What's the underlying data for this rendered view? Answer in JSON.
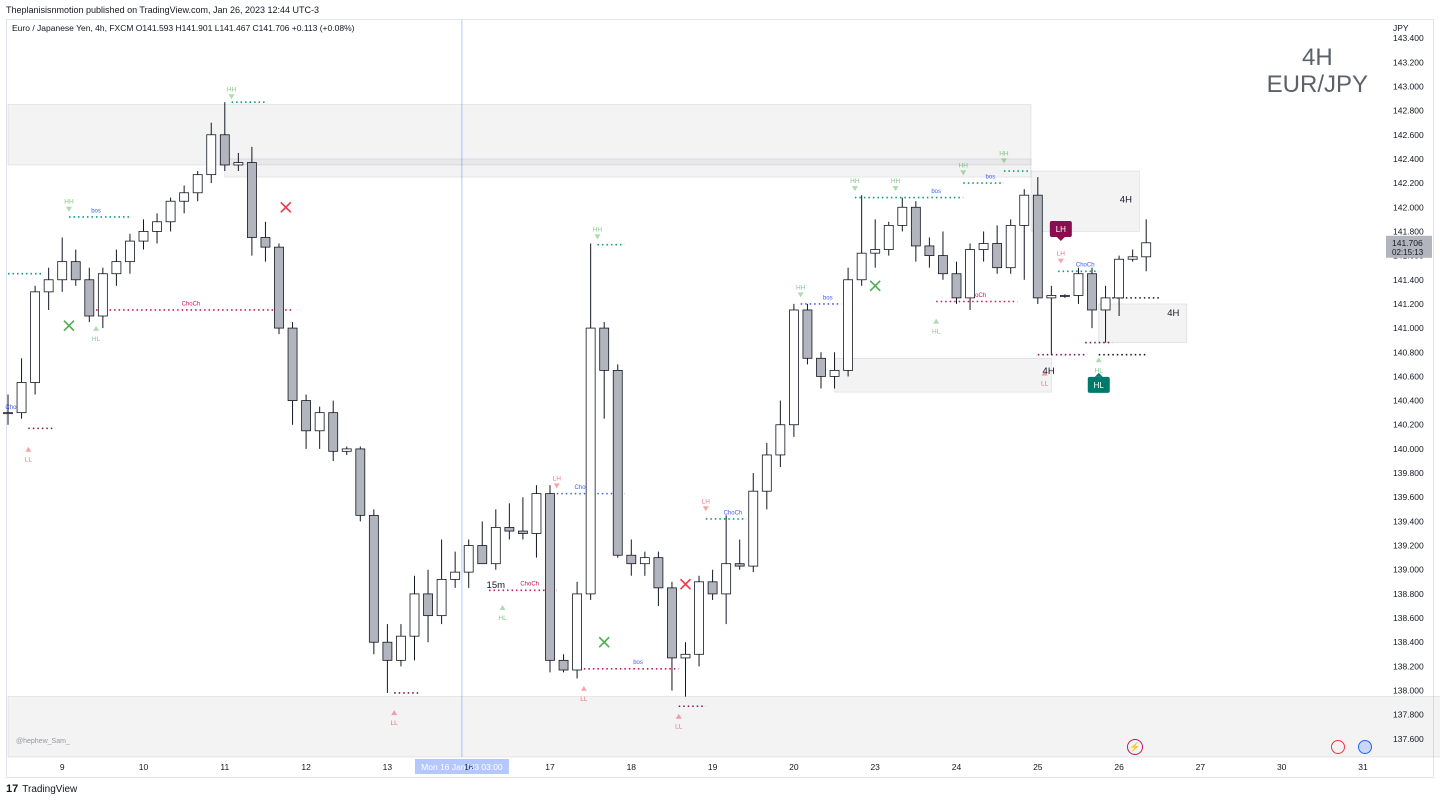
{
  "header": {
    "published": "Theplanisisnmotion published on TradingView.com, Jan 26, 2023 12:44 UTC-3",
    "legend": "Euro / Japanese Yen, 4h, FXCM  O141.593  H141.901  L141.467  C141.706  +0.113 (+0.08%)"
  },
  "watermark": {
    "line1": "4H",
    "line2": "EUR/JPY"
  },
  "footer": {
    "brand": "TradingView",
    "credit": "@hephew_Sam_"
  },
  "chart_data": {
    "type": "candlestick",
    "currency": "JPY",
    "ylim": [
      137.45,
      143.55
    ],
    "y_ticks": [
      "143.400",
      "143.200",
      "143.000",
      "142.800",
      "142.600",
      "142.400",
      "142.200",
      "142.000",
      "141.800",
      "141.600",
      "141.400",
      "141.200",
      "141.000",
      "140.800",
      "140.600",
      "140.400",
      "140.200",
      "140.000",
      "139.800",
      "139.600",
      "139.400",
      "139.200",
      "139.000",
      "138.800",
      "138.600",
      "138.400",
      "138.200",
      "138.000",
      "137.800",
      "137.600"
    ],
    "x_ticks": [
      {
        "label": "9",
        "bar": 4
      },
      {
        "label": "10",
        "bar": 10
      },
      {
        "label": "11",
        "bar": 16
      },
      {
        "label": "12",
        "bar": 22
      },
      {
        "label": "13",
        "bar": 28
      },
      {
        "label": "16",
        "bar": 34
      },
      {
        "label": "17",
        "bar": 40
      },
      {
        "label": "18",
        "bar": 46
      },
      {
        "label": "19",
        "bar": 52
      },
      {
        "label": "20",
        "bar": 58
      },
      {
        "label": "23",
        "bar": 64
      },
      {
        "label": "24",
        "bar": 70
      },
      {
        "label": "25",
        "bar": 76
      },
      {
        "label": "26",
        "bar": 82
      },
      {
        "label": "27",
        "bar": 88
      },
      {
        "label": "30",
        "bar": 94
      },
      {
        "label": "31",
        "bar": 100
      }
    ],
    "crosshair": {
      "bar": 33.5,
      "label": "Mon 16 Jan '23   03:00"
    },
    "last_price": {
      "value": "141.706",
      "countdown": "02:15:13"
    },
    "candles": [
      [
        140.3,
        140.45,
        140.2,
        140.3
      ],
      [
        140.3,
        140.75,
        140.25,
        140.55
      ],
      [
        140.55,
        141.35,
        140.45,
        141.3
      ],
      [
        141.3,
        141.5,
        141.15,
        141.4
      ],
      [
        141.4,
        141.75,
        141.3,
        141.55
      ],
      [
        141.55,
        141.65,
        141.35,
        141.4
      ],
      [
        141.4,
        141.5,
        141.05,
        141.1
      ],
      [
        141.1,
        141.5,
        141.0,
        141.45
      ],
      [
        141.45,
        141.65,
        141.35,
        141.55
      ],
      [
        141.55,
        141.78,
        141.45,
        141.72
      ],
      [
        141.72,
        141.9,
        141.65,
        141.8
      ],
      [
        141.8,
        141.95,
        141.7,
        141.88
      ],
      [
        141.88,
        142.08,
        141.8,
        142.05
      ],
      [
        142.05,
        142.18,
        141.95,
        142.12
      ],
      [
        142.12,
        142.3,
        142.05,
        142.27
      ],
      [
        142.27,
        142.7,
        142.2,
        142.6
      ],
      [
        142.6,
        142.87,
        142.3,
        142.35
      ],
      [
        142.35,
        142.45,
        142.3,
        142.37
      ],
      [
        142.37,
        142.5,
        141.6,
        141.75
      ],
      [
        141.75,
        141.88,
        141.55,
        141.67
      ],
      [
        141.67,
        141.7,
        140.95,
        141.0
      ],
      [
        141.0,
        141.05,
        140.2,
        140.4
      ],
      [
        140.4,
        140.45,
        140.0,
        140.15
      ],
      [
        140.15,
        140.35,
        140.0,
        140.3
      ],
      [
        140.3,
        140.4,
        139.9,
        139.98
      ],
      [
        139.98,
        140.02,
        139.95,
        140.0
      ],
      [
        140.0,
        140.02,
        139.4,
        139.45
      ],
      [
        139.45,
        139.5,
        138.3,
        138.4
      ],
      [
        138.4,
        138.55,
        137.98,
        138.25
      ],
      [
        138.25,
        138.55,
        138.2,
        138.45
      ],
      [
        138.45,
        138.95,
        138.25,
        138.8
      ],
      [
        138.8,
        139.0,
        138.4,
        138.62
      ],
      [
        138.62,
        139.25,
        138.55,
        138.92
      ],
      [
        138.92,
        139.15,
        138.85,
        138.98
      ],
      [
        138.98,
        139.25,
        138.85,
        139.2
      ],
      [
        139.2,
        139.4,
        139.05,
        139.05
      ],
      [
        139.05,
        139.5,
        139.0,
        139.35
      ],
      [
        139.35,
        139.55,
        139.25,
        139.32
      ],
      [
        139.32,
        139.6,
        139.25,
        139.3
      ],
      [
        139.3,
        139.7,
        139.1,
        139.63
      ],
      [
        139.63,
        139.7,
        138.15,
        138.25
      ],
      [
        138.25,
        138.3,
        138.15,
        138.17
      ],
      [
        138.17,
        138.9,
        138.1,
        138.8
      ],
      [
        138.8,
        141.7,
        138.75,
        141.0
      ],
      [
        141.0,
        141.05,
        140.25,
        140.65
      ],
      [
        140.65,
        140.7,
        139.1,
        139.12
      ],
      [
        139.12,
        139.25,
        138.95,
        139.05
      ],
      [
        139.05,
        139.15,
        138.95,
        139.1
      ],
      [
        139.1,
        139.15,
        138.7,
        138.85
      ],
      [
        138.85,
        138.9,
        138.0,
        138.27
      ],
      [
        138.27,
        138.4,
        137.95,
        138.3
      ],
      [
        138.3,
        138.95,
        138.2,
        138.9
      ],
      [
        138.9,
        139.0,
        138.75,
        138.8
      ],
      [
        138.8,
        139.45,
        138.55,
        139.05
      ],
      [
        139.05,
        139.25,
        139.0,
        139.03
      ],
      [
        139.03,
        139.8,
        138.98,
        139.65
      ],
      [
        139.65,
        140.05,
        139.5,
        139.95
      ],
      [
        139.95,
        140.4,
        139.85,
        140.2
      ],
      [
        140.2,
        141.2,
        140.1,
        141.15
      ],
      [
        141.15,
        141.2,
        140.7,
        140.75
      ],
      [
        140.75,
        140.8,
        140.5,
        140.6
      ],
      [
        140.6,
        140.8,
        140.5,
        140.65
      ],
      [
        140.65,
        141.5,
        140.6,
        141.4
      ],
      [
        141.4,
        142.1,
        141.35,
        141.62
      ],
      [
        141.62,
        141.9,
        141.5,
        141.65
      ],
      [
        141.65,
        141.88,
        141.6,
        141.85
      ],
      [
        141.85,
        142.08,
        141.8,
        142.0
      ],
      [
        142.0,
        142.05,
        141.55,
        141.68
      ],
      [
        141.68,
        141.75,
        141.5,
        141.6
      ],
      [
        141.6,
        141.8,
        141.4,
        141.45
      ],
      [
        141.45,
        141.55,
        141.2,
        141.25
      ],
      [
        141.25,
        141.7,
        141.15,
        141.65
      ],
      [
        141.65,
        141.8,
        141.55,
        141.7
      ],
      [
        141.7,
        141.85,
        141.45,
        141.5
      ],
      [
        141.5,
        141.9,
        141.45,
        141.85
      ],
      [
        141.85,
        142.15,
        141.4,
        142.1
      ],
      [
        142.1,
        142.25,
        141.2,
        141.25
      ],
      [
        141.25,
        141.35,
        140.78,
        141.27
      ],
      [
        141.27,
        141.28,
        141.25,
        141.27
      ],
      [
        141.27,
        141.5,
        141.2,
        141.45
      ],
      [
        141.45,
        141.5,
        141.0,
        141.15
      ],
      [
        141.15,
        141.35,
        140.88,
        141.25
      ],
      [
        141.25,
        141.6,
        141.1,
        141.57
      ],
      [
        141.57,
        141.65,
        141.55,
        141.59
      ],
      [
        141.59,
        141.9,
        141.47,
        141.706
      ]
    ],
    "zones": [
      {
        "x1": 0,
        "x2": 75.5,
        "top": 142.85,
        "bottom": 142.35,
        "color": "#787b86"
      },
      {
        "x1": 16,
        "x2": 75.5,
        "top": 142.4,
        "bottom": 142.25,
        "color": "#787b86"
      },
      {
        "x1": 61,
        "x2": 77,
        "top": 140.75,
        "bottom": 140.47,
        "color": "#787b86"
      },
      {
        "x1": 75.5,
        "x2": 83.5,
        "top": 142.3,
        "bottom": 141.8,
        "color": "#787b86"
      },
      {
        "x1": 80.5,
        "x2": 87,
        "top": 141.2,
        "bottom": 140.88,
        "color": "#787b86"
      },
      {
        "x1": 0,
        "x2": 106,
        "top": 137.95,
        "bottom": 137.45,
        "color": "#787b86"
      }
    ],
    "zone_labels": [
      {
        "text": "4H",
        "bar": 82.5,
        "y": 142.04
      },
      {
        "text": "4H",
        "bar": 86,
        "y": 141.1
      },
      {
        "text": "4H",
        "bar": 76.8,
        "y": 140.62
      },
      {
        "text": "15m",
        "bar": 36,
        "y": 138.85
      }
    ],
    "levels": [
      {
        "x1": 16.5,
        "x2": 19,
        "y": 142.87,
        "color": "#089981"
      },
      {
        "x1": 4.5,
        "x2": 9,
        "y": 141.92,
        "color": "#089981"
      },
      {
        "x1": 6.5,
        "x2": 21,
        "y": 141.15,
        "color": "#c2185b"
      },
      {
        "x1": 0,
        "x2": 2.5,
        "y": 141.45,
        "color": "#089981"
      },
      {
        "x1": 1.5,
        "x2": 3.5,
        "y": 140.17,
        "color": "#880e4f"
      },
      {
        "x1": 43.5,
        "x2": 45.5,
        "y": 141.69,
        "color": "#089981"
      },
      {
        "x1": 40.5,
        "x2": 45.5,
        "y": 139.63,
        "color": "#3d5afe"
      },
      {
        "x1": 35.5,
        "x2": 40.5,
        "y": 138.83,
        "color": "#c2185b"
      },
      {
        "x1": 28.5,
        "x2": 30.5,
        "y": 137.98,
        "color": "#880e4f"
      },
      {
        "x1": 42.5,
        "x2": 49.5,
        "y": 138.18,
        "color": "#c2185b"
      },
      {
        "x1": 49.5,
        "x2": 51.5,
        "y": 137.87,
        "color": "#880e4f"
      },
      {
        "x1": 51.5,
        "x2": 54.5,
        "y": 139.42,
        "color": "#089981"
      },
      {
        "x1": 58.5,
        "x2": 61.5,
        "y": 141.2,
        "color": "#3d5afe"
      },
      {
        "x1": 62.5,
        "x2": 70.5,
        "y": 142.08,
        "color": "#089981"
      },
      {
        "x1": 68.5,
        "x2": 74.5,
        "y": 141.22,
        "color": "#c2185b"
      },
      {
        "x1": 70.5,
        "x2": 73.5,
        "y": 142.2,
        "color": "#089981"
      },
      {
        "x1": 73.5,
        "x2": 75.5,
        "y": 142.3,
        "color": "#089981"
      },
      {
        "x1": 76,
        "x2": 79.5,
        "y": 140.78,
        "color": "#880e4f"
      },
      {
        "x1": 77.5,
        "x2": 80.5,
        "y": 141.47,
        "color": "#089981"
      },
      {
        "x1": 79.5,
        "x2": 81.5,
        "y": 140.88,
        "color": "#880e4f"
      },
      {
        "x1": 80.5,
        "x2": 84,
        "y": 140.78,
        "color": "#131722"
      },
      {
        "x1": 81.5,
        "x2": 85,
        "y": 141.25,
        "color": "#131722"
      }
    ],
    "level_labels": [
      {
        "text": "bos",
        "bar": 6.5,
        "y": 141.95,
        "color": "#3d5afe"
      },
      {
        "text": "ChoCh",
        "bar": 13.5,
        "y": 141.18,
        "color": "#c2185b"
      },
      {
        "text": "ChoCh",
        "bar": 0.5,
        "y": 140.32,
        "color": "#3d5afe"
      },
      {
        "text": "ChoCh",
        "bar": 42.5,
        "y": 139.66,
        "color": "#3d5afe"
      },
      {
        "text": "ChoCh",
        "bar": 38.5,
        "y": 138.86,
        "color": "#c2185b"
      },
      {
        "text": "bos",
        "bar": 46.5,
        "y": 138.21,
        "color": "#3d5afe"
      },
      {
        "text": "ChoCh",
        "bar": 53.5,
        "y": 139.45,
        "color": "#3d5afe"
      },
      {
        "text": "bos",
        "bar": 60.5,
        "y": 141.23,
        "color": "#3d5afe"
      },
      {
        "text": "bos",
        "bar": 68.5,
        "y": 142.11,
        "color": "#3d5afe"
      },
      {
        "text": "ChoCh",
        "bar": 71.5,
        "y": 141.25,
        "color": "#c2185b"
      },
      {
        "text": "bos",
        "bar": 72.5,
        "y": 142.23,
        "color": "#3d5afe"
      },
      {
        "text": "ChoCh",
        "bar": 79.5,
        "y": 141.5,
        "color": "#3d5afe"
      }
    ],
    "pivots": [
      {
        "text": "HH",
        "bar": 16.5,
        "y": 142.96,
        "type": "high"
      },
      {
        "text": "HH",
        "bar": 4.5,
        "y": 142.03,
        "type": "high"
      },
      {
        "text": "HL",
        "bar": 6.5,
        "y": 141.01,
        "type": "low"
      },
      {
        "text": "LL",
        "bar": 1.5,
        "y": 140.01,
        "type": "low"
      },
      {
        "text": "HH",
        "bar": 43.5,
        "y": 141.8,
        "type": "high"
      },
      {
        "text": "LH",
        "bar": 40.5,
        "y": 139.74,
        "type": "high"
      },
      {
        "text": "HL",
        "bar": 36.5,
        "y": 138.7,
        "type": "low"
      },
      {
        "text": "LL",
        "bar": 28.5,
        "y": 137.83,
        "type": "low"
      },
      {
        "text": "LL",
        "bar": 42.5,
        "y": 138.03,
        "type": "low"
      },
      {
        "text": "LL",
        "bar": 49.5,
        "y": 137.8,
        "type": "low"
      },
      {
        "text": "LH",
        "bar": 51.5,
        "y": 139.55,
        "type": "high"
      },
      {
        "text": "HH",
        "bar": 58.5,
        "y": 141.32,
        "type": "high"
      },
      {
        "text": "HH",
        "bar": 62.5,
        "y": 142.2,
        "type": "high"
      },
      {
        "text": "HH",
        "bar": 65.5,
        "y": 142.2,
        "type": "high"
      },
      {
        "text": "HH",
        "bar": 70.5,
        "y": 142.33,
        "type": "high"
      },
      {
        "text": "HH",
        "bar": 73.5,
        "y": 142.43,
        "type": "high"
      },
      {
        "text": "HL",
        "bar": 68.5,
        "y": 141.07,
        "type": "low"
      },
      {
        "text": "LH",
        "bar": 77.7,
        "y": 141.6,
        "type": "high"
      },
      {
        "text": "LL",
        "bar": 76.5,
        "y": 140.64,
        "type": "low"
      },
      {
        "text": "HL",
        "bar": 80.5,
        "y": 140.75,
        "type": "low"
      }
    ],
    "badges": [
      {
        "text": "LH",
        "bar": 77.7,
        "y": 141.82,
        "color": "#880e4f",
        "dir": "down"
      },
      {
        "text": "HL",
        "bar": 80.5,
        "y": 140.53,
        "color": "#00796b",
        "dir": "up"
      }
    ],
    "crosses": [
      {
        "bar": 20.5,
        "y": 142.0,
        "color": "#f23645"
      },
      {
        "bar": 4.5,
        "y": 141.02,
        "color": "#4caf50"
      },
      {
        "bar": 64,
        "y": 141.35,
        "color": "#4caf50"
      },
      {
        "bar": 50,
        "y": 138.88,
        "color": "#f23645"
      },
      {
        "bar": 44,
        "y": 138.4,
        "color": "#4caf50"
      }
    ]
  }
}
